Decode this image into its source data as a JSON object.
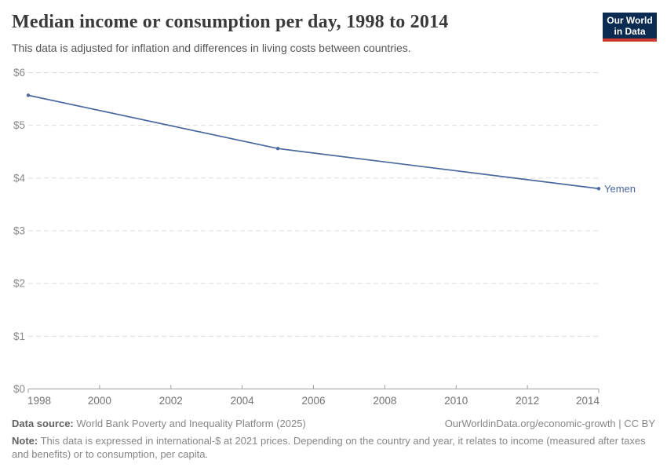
{
  "header": {
    "title": "Median income or consumption per day, 1998 to 2014",
    "subtitle": "This data is adjusted for inflation and differences in living costs between countries.",
    "logo": {
      "line1": "Our World",
      "line2": "in Data",
      "bg_color": "#0c2b51",
      "stripe_color": "#cc392e"
    }
  },
  "chart_data": {
    "type": "line",
    "title": "Median income or consumption per day, 1998 to 2014",
    "subtitle": "This data is adjusted for inflation and differences in living costs between countries.",
    "xlim": [
      1998,
      2014
    ],
    "ylim": [
      0,
      6
    ],
    "grid": "horizontal-dashed",
    "legend": "end-of-line-label",
    "x_ticks": [
      {
        "value": 1998,
        "label": "1998"
      },
      {
        "value": 2000,
        "label": "2000"
      },
      {
        "value": 2002,
        "label": "2002"
      },
      {
        "value": 2004,
        "label": "2004"
      },
      {
        "value": 2006,
        "label": "2006"
      },
      {
        "value": 2008,
        "label": "2008"
      },
      {
        "value": 2010,
        "label": "2010"
      },
      {
        "value": 2012,
        "label": "2012"
      },
      {
        "value": 2014,
        "label": "2014"
      }
    ],
    "y_ticks": [
      {
        "value": 0,
        "label": "$0"
      },
      {
        "value": 1,
        "label": "$1"
      },
      {
        "value": 2,
        "label": "$2"
      },
      {
        "value": 3,
        "label": "$3"
      },
      {
        "value": 4,
        "label": "$4"
      },
      {
        "value": 5,
        "label": "$5"
      },
      {
        "value": 6,
        "label": "$6"
      }
    ],
    "series": [
      {
        "name": "Yemen",
        "color": "#4a689f",
        "points": [
          {
            "year": 1998,
            "value": 5.57
          },
          {
            "year": 2005,
            "value": 4.56
          },
          {
            "year": 2014,
            "value": 3.8
          }
        ]
      }
    ],
    "colors": {
      "gridline": "#dcdcdc",
      "axis": "#9e9e9e",
      "y_tick_label": "#8a8a8a",
      "x_tick_label": "#737373"
    }
  },
  "footer": {
    "source_label": "Data source:",
    "source_text": " World Bank Poverty and Inequality Platform (2025)",
    "link": "OurWorldinData.org/economic-growth | CC BY",
    "note_label": "Note:",
    "note_text": " This data is expressed in international-$ at 2021 prices. Depending on the country and year, it relates to income (measured after taxes and benefits) or to consumption, per capita."
  }
}
